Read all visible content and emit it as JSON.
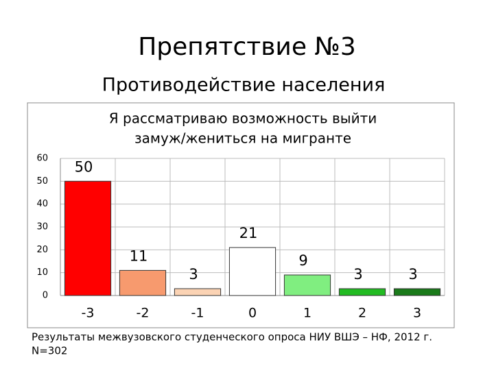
{
  "slide": {
    "title": "Препятствие №3",
    "subtitle": "Противодействие населения"
  },
  "chart_data": {
    "type": "bar",
    "title": [
      "Я рассматриваю возможность выйти",
      "замуж/жениться на мигранте"
    ],
    "categories": [
      "-3",
      "-2",
      "-1",
      "0",
      "1",
      "2",
      "3"
    ],
    "values": [
      50,
      11,
      3,
      21,
      9,
      3,
      3
    ],
    "colors": [
      "#ff0000",
      "#f79a6e",
      "#fbd3b4",
      "#ffffff",
      "#80ee80",
      "#22bb22",
      "#1a7a1a"
    ],
    "ylim": [
      0,
      60
    ],
    "yticks": [
      0,
      10,
      20,
      30,
      40,
      50,
      60
    ],
    "grid": true
  },
  "footnote": [
    "Результаты межвузовского студенческого опроса НИУ ВШЭ – НФ, 2012 г.",
    "N=302"
  ]
}
